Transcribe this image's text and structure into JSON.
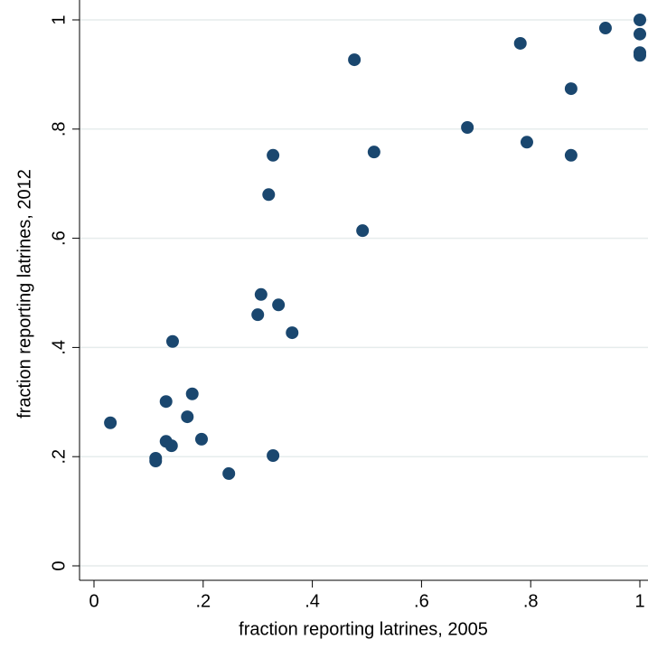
{
  "chart_data": {
    "type": "scatter",
    "x_label": "fraction reporting latrines, 2005",
    "y_label": "fraction reporting latrines, 2012",
    "color": "#1a476f",
    "grid": true,
    "xlim": [
      0,
      1
    ],
    "ylim": [
      0,
      1
    ],
    "xticks": [
      0,
      {
        "value": 0.2,
        "label": ".2"
      },
      {
        "value": 0.4,
        "label": ".4"
      },
      {
        "value": 0.6,
        "label": ".6"
      },
      {
        "value": 0.8,
        "label": ".8"
      },
      1
    ],
    "yticks": [
      0,
      {
        "value": 0.2,
        "label": ".2"
      },
      {
        "value": 0.4,
        "label": ".4"
      },
      {
        "value": 0.6,
        "label": ".6"
      },
      {
        "value": 0.8,
        "label": ".8"
      },
      1
    ],
    "x": [
      0.03,
      0.113,
      0.113,
      0.132,
      0.142,
      0.132,
      0.144,
      0.171,
      0.18,
      0.197,
      0.247,
      0.328,
      0.3,
      0.306,
      0.338,
      0.363,
      0.32,
      0.328,
      0.477,
      0.492,
      0.513,
      0.684,
      0.781,
      0.793,
      0.874,
      0.874,
      0.937,
      1.0,
      1.0,
      1.0,
      1.0
    ],
    "y": [
      0.262,
      0.192,
      0.197,
      0.228,
      0.22,
      0.301,
      0.411,
      0.273,
      0.315,
      0.232,
      0.169,
      0.202,
      0.46,
      0.497,
      0.478,
      0.427,
      0.68,
      0.752,
      0.927,
      0.614,
      0.758,
      0.803,
      0.957,
      0.776,
      0.874,
      0.752,
      0.985,
      1.0,
      0.974,
      0.94,
      0.935
    ]
  }
}
